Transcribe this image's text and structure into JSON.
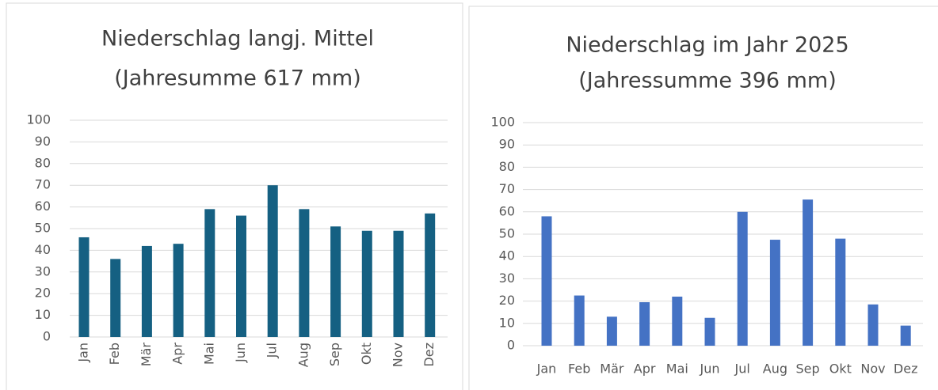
{
  "chart_data": [
    {
      "type": "bar",
      "title": "Niederschlag langj. Mittel",
      "subtitle": "(Jahresumme 617 mm)",
      "categories": [
        "Jan",
        "Feb",
        "Mär",
        "Apr",
        "Mai",
        "Jun",
        "Jul",
        "Aug",
        "Sep",
        "Okt",
        "Nov",
        "Dez"
      ],
      "values": [
        46,
        36,
        42,
        43,
        59,
        56,
        70,
        59,
        51,
        49,
        49,
        57
      ],
      "color": "#156082",
      "ylim": [
        0,
        100
      ],
      "yticks": [
        0,
        10,
        20,
        30,
        40,
        50,
        60,
        70,
        80,
        90,
        100
      ],
      "grid": true
    },
    {
      "type": "bar",
      "title": "Niederschlag im Jahr 2025",
      "subtitle": "(Jahressumme 396 mm)",
      "categories": [
        "Jan",
        "Feb",
        "Mär",
        "Apr",
        "Mai",
        "Jun",
        "Jul",
        "Aug",
        "Sep",
        "Okt",
        "Nov",
        "Dez"
      ],
      "values": [
        58,
        22.5,
        13,
        19.5,
        22,
        12.5,
        60,
        47.5,
        65.5,
        48,
        18.5,
        9
      ],
      "color": "#4472c4",
      "ylim": [
        0,
        100
      ],
      "yticks": [
        0,
        10,
        20,
        30,
        40,
        50,
        60,
        70,
        80,
        90,
        100
      ],
      "grid": true
    }
  ]
}
